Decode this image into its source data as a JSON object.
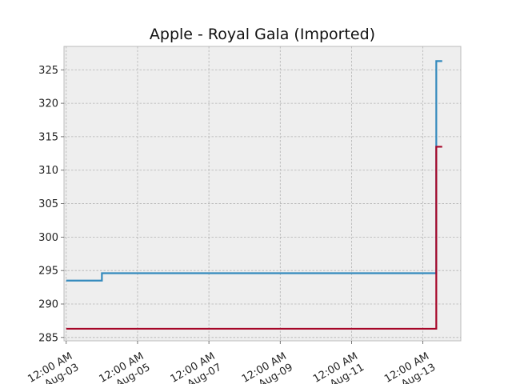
{
  "chart_data": {
    "type": "line",
    "title": "Apple - Royal Gala (Imported)",
    "xlabel": "",
    "ylabel": "",
    "line_style": "step",
    "grid": true,
    "legend": "none",
    "xlim": [
      "2023-08-02T22:30",
      "2023-08-14T01:30"
    ],
    "ylim": [
      284.5,
      328.5
    ],
    "yticks": [
      285,
      290,
      295,
      300,
      305,
      310,
      315,
      320,
      325
    ],
    "xticks": [
      {
        "date": "2023-08-03T00:00",
        "line1": "12:00 AM",
        "line2": "Aug-03"
      },
      {
        "date": "2023-08-05T00:00",
        "line1": "12:00 AM",
        "line2": "Aug-05"
      },
      {
        "date": "2023-08-07T00:00",
        "line1": "12:00 AM",
        "line2": "Aug-07"
      },
      {
        "date": "2023-08-09T00:00",
        "line1": "12:00 AM",
        "line2": "Aug-09"
      },
      {
        "date": "2023-08-11T00:00",
        "line1": "12:00 AM",
        "line2": "Aug-11"
      },
      {
        "date": "2023-08-13T00:00",
        "line1": "12:00 AM",
        "line2": "Aug-13"
      }
    ],
    "series": [
      {
        "color": "#348abd",
        "points": [
          {
            "x": "2023-08-03T00:00",
            "y": 293.5
          },
          {
            "x": "2023-08-04T00:00",
            "y": 294.6
          },
          {
            "x": "2023-08-13T09:00",
            "y": 326.3
          },
          {
            "x": "2023-08-13T13:00",
            "y": 326.3
          }
        ]
      },
      {
        "color": "#a60628",
        "points": [
          {
            "x": "2023-08-03T00:00",
            "y": 286.3
          },
          {
            "x": "2023-08-13T09:00",
            "y": 313.5
          },
          {
            "x": "2023-08-13T13:00",
            "y": 313.5
          }
        ]
      }
    ],
    "colors": {
      "plot_background": "#eeeeee",
      "axes_edge": "#bcbcbc",
      "grid": "#b2b2b2"
    }
  }
}
